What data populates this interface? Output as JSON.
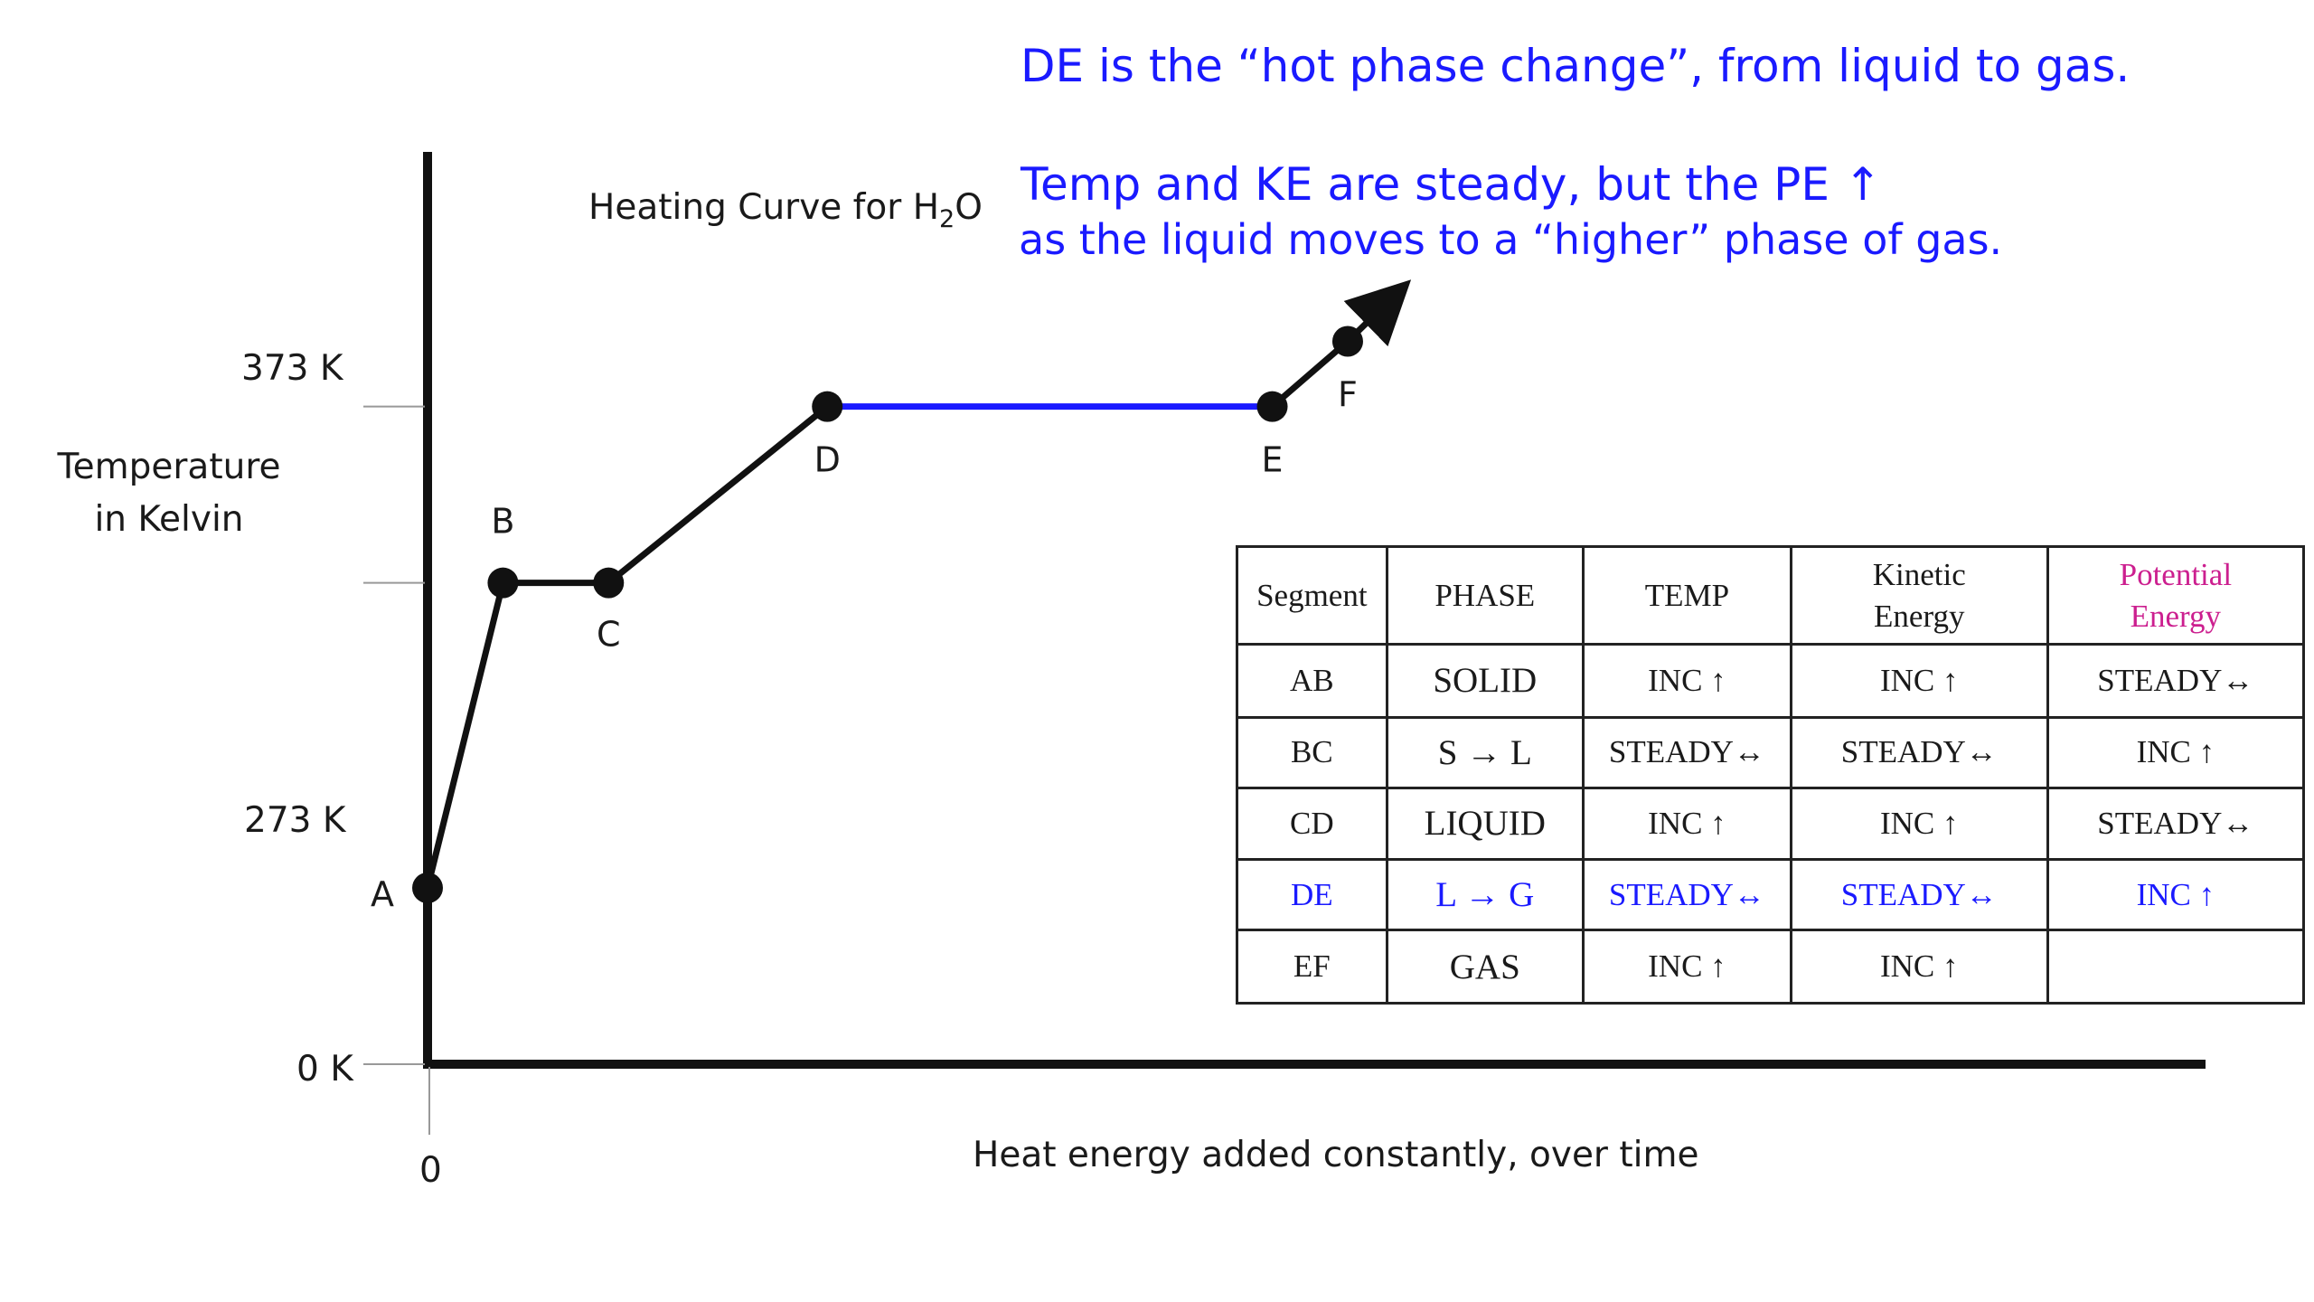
{
  "title": "Heating Curve for H",
  "title_sub": "2",
  "title_tail": "O",
  "ylabel_line1": "Temperature",
  "ylabel_line2": "in Kelvin",
  "xlabel": "Heat energy added constantly, over time",
  "x_origin_label": "0",
  "y_ticks": [
    "373 K",
    "273 K",
    "0 K"
  ],
  "notes": {
    "line1": "DE is the “hot phase change”, from liquid to gas.",
    "line2": "Temp and KE are steady, but the PE ↑",
    "line3": "as the liquid moves to a “higher” phase of gas."
  },
  "colors": {
    "curve": "#111111",
    "highlight": "#1a1aff",
    "potential_header": "#cc1f8f"
  },
  "chart_data": {
    "type": "line",
    "title": "Heating Curve for H2O",
    "xlabel": "Heat energy added constantly, over time",
    "ylabel": "Temperature in Kelvin",
    "y_unit": "K",
    "ylim": [
      0,
      373
    ],
    "y_ticks": [
      0,
      273,
      373
    ],
    "grid": false,
    "points": [
      {
        "label": "A",
        "x": 0,
        "y": 100
      },
      {
        "label": "B",
        "x": 1,
        "y": 273
      },
      {
        "label": "C",
        "x": 2.4,
        "y": 273
      },
      {
        "label": "D",
        "x": 5.3,
        "y": 373
      },
      {
        "label": "E",
        "x": 11.2,
        "y": 373
      },
      {
        "label": "F",
        "x": 12.2,
        "y": 410
      }
    ],
    "highlight_segment": "DE",
    "arrow_end": {
      "x": 12.8,
      "y": 435
    }
  },
  "table": {
    "headers": [
      "Segment",
      "PHASE",
      "TEMP",
      "Kinetic Energy",
      "Potential Energy"
    ],
    "rows": [
      [
        "AB",
        "SOLID",
        "INC ↑",
        "INC ↑",
        "STEADY↔"
      ],
      [
        "BC",
        "S → L",
        "STEADY↔",
        "STEADY↔",
        "INC ↑"
      ],
      [
        "CD",
        "LIQUID",
        "INC ↑",
        "INC ↑",
        "STEADY↔"
      ],
      [
        "DE",
        "L → G",
        "STEADY↔",
        "STEADY↔",
        "INC ↑"
      ],
      [
        "EF",
        "GAS",
        "INC ↑",
        "INC ↑",
        ""
      ]
    ],
    "highlight_row": 3
  }
}
